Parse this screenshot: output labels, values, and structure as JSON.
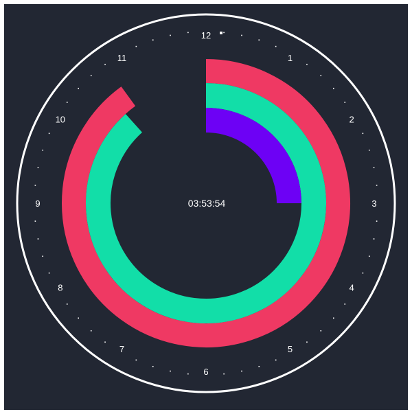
{
  "clock": {
    "time_text": "03:53:54",
    "time": {
      "hours": 3,
      "minutes": 53,
      "seconds": 54
    },
    "hour_labels": [
      "12",
      "1",
      "2",
      "3",
      "4",
      "5",
      "6",
      "7",
      "8",
      "9",
      "10",
      "11"
    ],
    "colors": {
      "background": "#222733",
      "bezel": "#ffffff",
      "ticks": "#ffffff",
      "seconds_ring": "#ef3963",
      "minutes_ring": "#12dea8",
      "hours_ring": "#6d01f5"
    },
    "rings": [
      {
        "name": "seconds",
        "value": 54,
        "max": 60,
        "color_key": "seconds_ring"
      },
      {
        "name": "minutes",
        "value": 53,
        "max": 60,
        "color_key": "minutes_ring"
      },
      {
        "name": "hours",
        "value": 3,
        "max": 12,
        "color_key": "hours_ring"
      }
    ]
  }
}
